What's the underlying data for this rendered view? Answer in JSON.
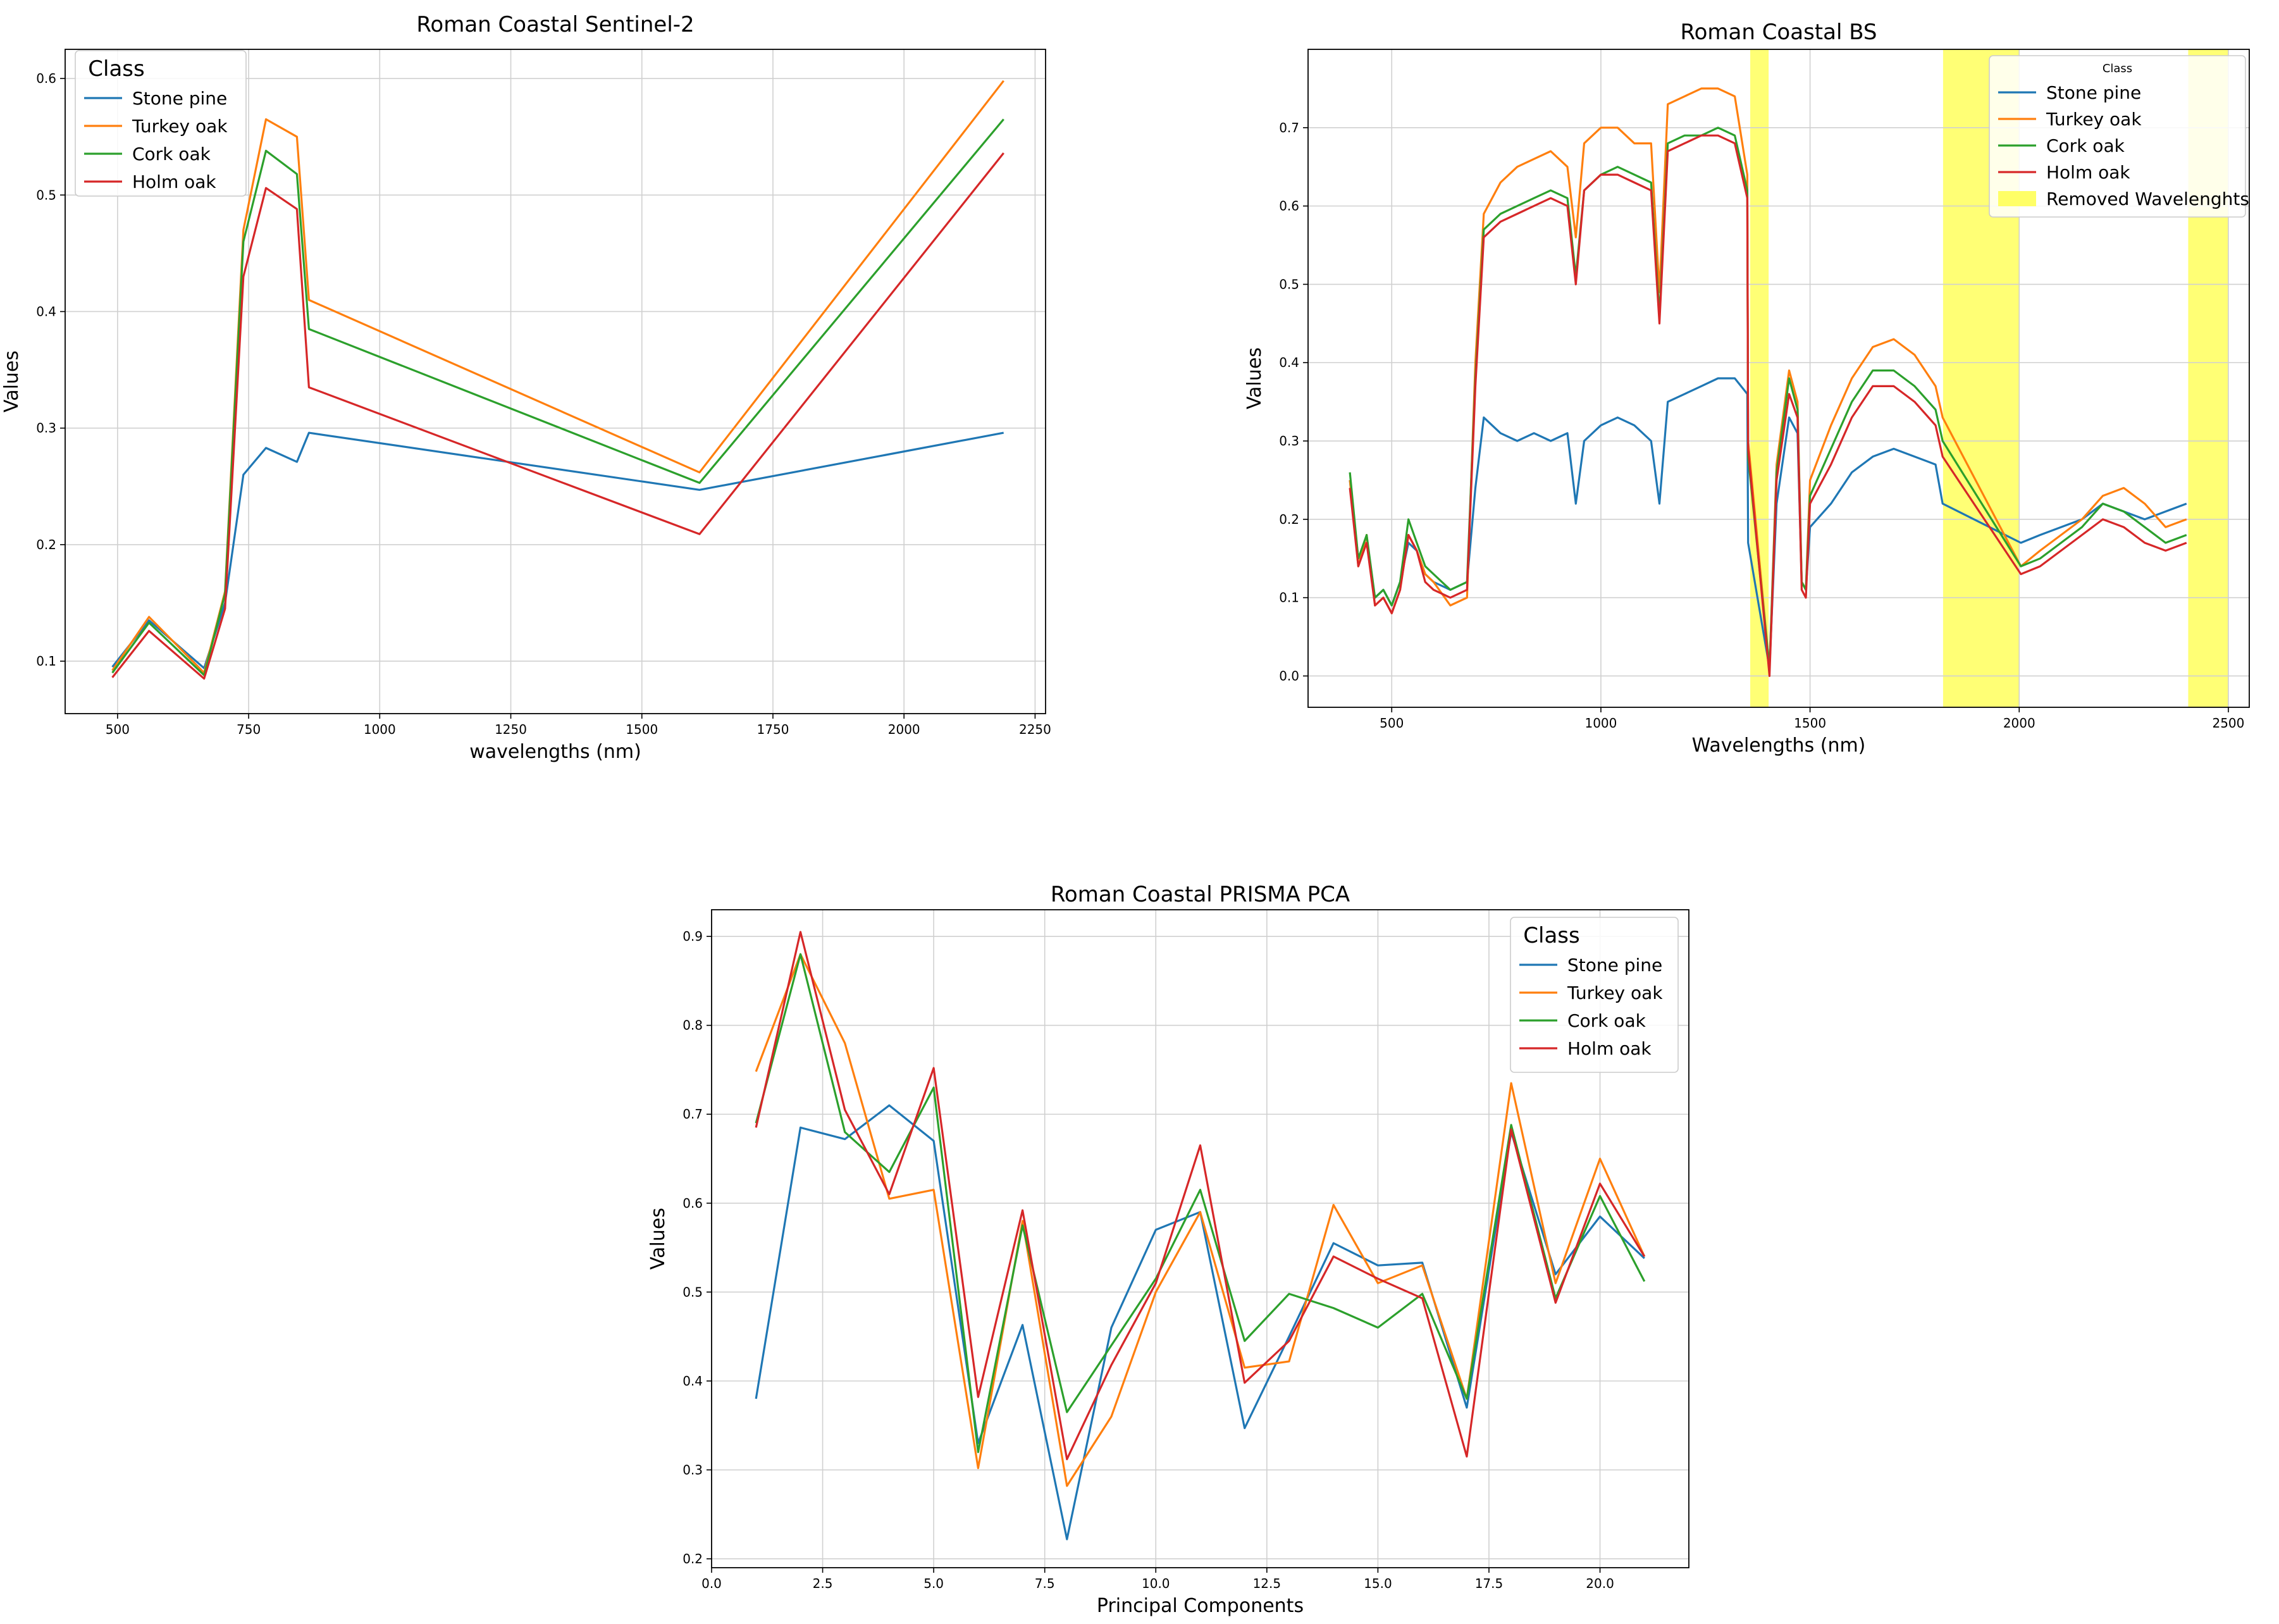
{
  "chart_data": [
    {
      "type": "line",
      "title": "Roman Coastal Sentinel-2",
      "xlabel": "wavelengths (nm)",
      "ylabel": "Values",
      "xlim": [
        400,
        2270
      ],
      "ylim": [
        0.055,
        0.625
      ],
      "xticks": [
        500,
        750,
        1000,
        1250,
        1500,
        1750,
        2000,
        2250
      ],
      "yticks": [
        0.1,
        0.2,
        0.3,
        0.4,
        0.5,
        0.6
      ],
      "grid": true,
      "legend": {
        "title": "Class",
        "position": "upper-left"
      },
      "x": [
        490,
        560,
        665,
        705,
        740,
        783,
        842,
        865,
        1610,
        2190
      ],
      "series": [
        {
          "name": "Stone pine",
          "color": "#1f77b4",
          "values": [
            0.095,
            0.135,
            0.094,
            0.15,
            0.26,
            0.283,
            0.271,
            0.296,
            0.247,
            0.296
          ]
        },
        {
          "name": "Turkey oak",
          "color": "#ff7f0e",
          "values": [
            0.092,
            0.138,
            0.09,
            0.16,
            0.47,
            0.565,
            0.55,
            0.41,
            0.262,
            0.598
          ]
        },
        {
          "name": "Cork oak",
          "color": "#2ca02c",
          "values": [
            0.09,
            0.133,
            0.088,
            0.158,
            0.46,
            0.538,
            0.518,
            0.385,
            0.253,
            0.565
          ]
        },
        {
          "name": "Holm oak",
          "color": "#d62728",
          "values": [
            0.086,
            0.126,
            0.085,
            0.145,
            0.43,
            0.506,
            0.488,
            0.335,
            0.209,
            0.536
          ]
        }
      ]
    },
    {
      "type": "line",
      "title": "Roman Coastal BS",
      "xlabel": "Wavelengths (nm)",
      "ylabel": "Values",
      "xlim": [
        300,
        2550
      ],
      "ylim": [
        -0.04,
        0.8
      ],
      "xticks": [
        500,
        1000,
        1500,
        2000,
        2500
      ],
      "yticks": [
        0.0,
        0.1,
        0.2,
        0.3,
        0.4,
        0.5,
        0.6,
        0.7
      ],
      "grid": true,
      "legend": {
        "title": "Class",
        "position": "upper-right"
      },
      "removed_label": "Removed Wavelenghts",
      "removed_color": "#ffff66",
      "removed_ranges": [
        [
          1357,
          1401
        ],
        [
          1818,
          2000
        ],
        [
          2404,
          2500
        ]
      ],
      "x": [
        400,
        420,
        440,
        460,
        480,
        500,
        520,
        540,
        560,
        580,
        600,
        640,
        680,
        700,
        720,
        760,
        800,
        840,
        880,
        920,
        940,
        960,
        1000,
        1040,
        1080,
        1120,
        1140,
        1160,
        1200,
        1240,
        1280,
        1320,
        1350,
        1352,
        1403,
        1420,
        1450,
        1470,
        1480,
        1490,
        1500,
        1550,
        1600,
        1650,
        1700,
        1750,
        1800,
        1817,
        2004,
        2050,
        2100,
        2150,
        2200,
        2250,
        2300,
        2350,
        2400
      ],
      "series": [
        {
          "name": "Stone pine",
          "color": "#1f77b4",
          "values": [
            0.25,
            0.15,
            0.17,
            0.1,
            0.11,
            0.09,
            0.12,
            0.17,
            0.16,
            0.13,
            0.12,
            0.11,
            0.12,
            0.24,
            0.33,
            0.31,
            0.3,
            0.31,
            0.3,
            0.31,
            0.22,
            0.3,
            0.32,
            0.33,
            0.32,
            0.3,
            0.22,
            0.35,
            0.36,
            0.37,
            0.38,
            0.38,
            0.36,
            0.17,
            0.01,
            0.22,
            0.33,
            0.31,
            0.12,
            0.11,
            0.19,
            0.22,
            0.26,
            0.28,
            0.29,
            0.28,
            0.27,
            0.22,
            0.17,
            0.18,
            0.19,
            0.2,
            0.22,
            0.21,
            0.2,
            0.21,
            0.22
          ]
        },
        {
          "name": "Turkey oak",
          "color": "#ff7f0e",
          "values": [
            0.25,
            0.14,
            0.18,
            0.09,
            0.1,
            0.08,
            0.11,
            0.18,
            0.16,
            0.13,
            0.12,
            0.09,
            0.1,
            0.4,
            0.59,
            0.63,
            0.65,
            0.66,
            0.67,
            0.65,
            0.56,
            0.68,
            0.7,
            0.7,
            0.68,
            0.68,
            0.49,
            0.73,
            0.74,
            0.75,
            0.75,
            0.74,
            0.64,
            0.3,
            0.01,
            0.27,
            0.39,
            0.35,
            0.12,
            0.11,
            0.25,
            0.32,
            0.38,
            0.42,
            0.43,
            0.41,
            0.37,
            0.33,
            0.14,
            0.16,
            0.18,
            0.2,
            0.23,
            0.24,
            0.22,
            0.19,
            0.2
          ]
        },
        {
          "name": "Cork oak",
          "color": "#2ca02c",
          "values": [
            0.26,
            0.15,
            0.18,
            0.1,
            0.11,
            0.09,
            0.12,
            0.2,
            0.17,
            0.14,
            0.13,
            0.11,
            0.12,
            0.38,
            0.57,
            0.59,
            0.6,
            0.61,
            0.62,
            0.61,
            0.51,
            0.62,
            0.64,
            0.65,
            0.64,
            0.63,
            0.46,
            0.68,
            0.69,
            0.69,
            0.7,
            0.69,
            0.62,
            0.28,
            0.01,
            0.26,
            0.38,
            0.34,
            0.12,
            0.11,
            0.23,
            0.29,
            0.35,
            0.39,
            0.39,
            0.37,
            0.34,
            0.3,
            0.14,
            0.15,
            0.17,
            0.19,
            0.22,
            0.21,
            0.19,
            0.17,
            0.18
          ]
        },
        {
          "name": "Holm oak",
          "color": "#d62728",
          "values": [
            0.24,
            0.14,
            0.17,
            0.09,
            0.1,
            0.08,
            0.11,
            0.18,
            0.16,
            0.12,
            0.11,
            0.1,
            0.11,
            0.37,
            0.56,
            0.58,
            0.59,
            0.6,
            0.61,
            0.6,
            0.5,
            0.62,
            0.64,
            0.64,
            0.63,
            0.62,
            0.45,
            0.67,
            0.68,
            0.69,
            0.69,
            0.68,
            0.61,
            0.29,
            0.0,
            0.25,
            0.36,
            0.33,
            0.11,
            0.1,
            0.22,
            0.27,
            0.33,
            0.37,
            0.37,
            0.35,
            0.32,
            0.28,
            0.13,
            0.14,
            0.16,
            0.18,
            0.2,
            0.19,
            0.17,
            0.16,
            0.17
          ]
        }
      ]
    },
    {
      "type": "line",
      "title": "Roman Coastal PRISMA PCA",
      "xlabel": "Principal Components",
      "ylabel": "Values",
      "xlim": [
        0.0,
        22.0
      ],
      "ylim": [
        0.19,
        0.93
      ],
      "xticks": [
        0.0,
        2.5,
        5.0,
        7.5,
        10.0,
        12.5,
        15.0,
        17.5,
        20.0
      ],
      "yticks": [
        0.2,
        0.3,
        0.4,
        0.5,
        0.6,
        0.7,
        0.8,
        0.9
      ],
      "grid": true,
      "legend": {
        "title": "Class",
        "position": "upper-right"
      },
      "x": [
        1,
        2,
        3,
        4,
        5,
        6,
        7,
        8,
        9,
        10,
        11,
        12,
        13,
        14,
        15,
        16,
        17,
        18,
        19,
        20,
        21
      ],
      "series": [
        {
          "name": "Stone pine",
          "color": "#1f77b4",
          "values": [
            0.38,
            0.685,
            0.672,
            0.71,
            0.67,
            0.33,
            0.463,
            0.222,
            0.46,
            0.57,
            0.59,
            0.347,
            0.45,
            0.555,
            0.53,
            0.533,
            0.37,
            0.68,
            0.52,
            0.585,
            0.538
          ]
        },
        {
          "name": "Turkey oak",
          "color": "#ff7f0e",
          "values": [
            0.748,
            0.88,
            0.78,
            0.605,
            0.615,
            0.302,
            0.58,
            0.282,
            0.36,
            0.5,
            0.59,
            0.415,
            0.422,
            0.598,
            0.51,
            0.53,
            0.38,
            0.735,
            0.51,
            0.65,
            0.54
          ]
        },
        {
          "name": "Cork oak",
          "color": "#2ca02c",
          "values": [
            0.69,
            0.88,
            0.68,
            0.635,
            0.73,
            0.32,
            0.575,
            0.365,
            0.44,
            0.515,
            0.615,
            0.445,
            0.498,
            0.482,
            0.46,
            0.498,
            0.38,
            0.688,
            0.493,
            0.608,
            0.512
          ]
        },
        {
          "name": "Holm oak",
          "color": "#d62728",
          "values": [
            0.685,
            0.905,
            0.705,
            0.61,
            0.752,
            0.382,
            0.592,
            0.312,
            0.418,
            0.51,
            0.665,
            0.398,
            0.445,
            0.54,
            0.515,
            0.493,
            0.315,
            0.683,
            0.488,
            0.622,
            0.54
          ]
        }
      ]
    }
  ]
}
